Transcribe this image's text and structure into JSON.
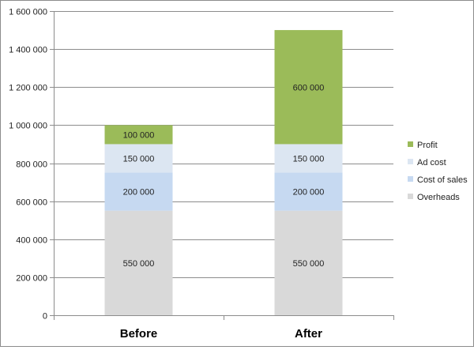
{
  "chart_data": {
    "type": "bar",
    "stacked": true,
    "categories": [
      "Before",
      "After"
    ],
    "series": [
      {
        "name": "Overheads",
        "values": [
          550000,
          550000
        ],
        "color": "#d9d9d9",
        "labels": [
          "550 000",
          "550 000"
        ]
      },
      {
        "name": "Cost of sales",
        "values": [
          200000,
          200000
        ],
        "color": "#c6d9f1",
        "labels": [
          "200 000",
          "200 000"
        ]
      },
      {
        "name": "Ad cost",
        "values": [
          150000,
          150000
        ],
        "color": "#dce6f2",
        "labels": [
          "150 000",
          "150 000"
        ]
      },
      {
        "name": "Profit",
        "values": [
          100000,
          600000
        ],
        "color": "#9bbb59",
        "labels": [
          "100 000",
          "600 000"
        ]
      }
    ],
    "yticks": [
      0,
      200000,
      400000,
      600000,
      800000,
      1000000,
      1200000,
      1400000,
      1600000
    ],
    "ytick_labels": [
      "0",
      "200 000",
      "400 000",
      "600 000",
      "800 000",
      "1 000 000",
      "1 200 000",
      "1 400 000",
      "1 600 000"
    ],
    "ylim": [
      0,
      1600000
    ],
    "grid": true,
    "legend_position": "right",
    "legend_order": [
      "Profit",
      "Ad cost",
      "Cost of sales",
      "Overheads"
    ]
  }
}
